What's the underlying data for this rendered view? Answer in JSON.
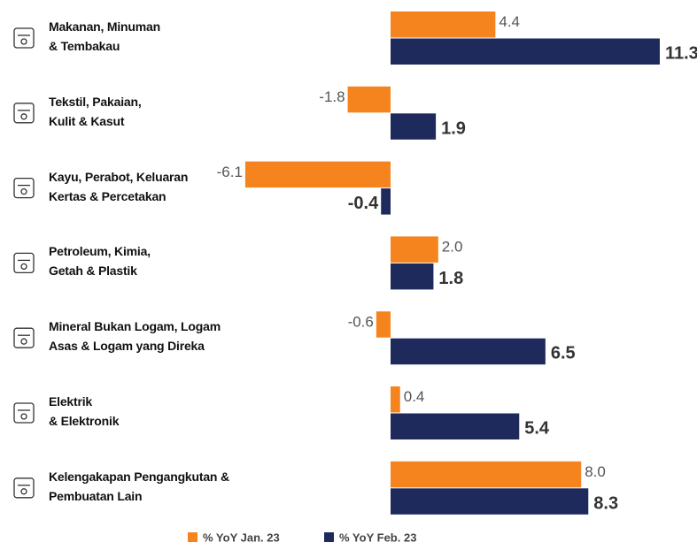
{
  "chart_data": {
    "type": "bar",
    "orientation": "horizontal",
    "categories": [
      "Makanan, Minuman\n& Tembakau",
      "Tekstil, Pakaian,\nKulit & Kasut",
      "Kayu, Perabot, Keluaran\nKertas & Percetakan",
      "Petroleum, Kimia,\nGetah & Plastik",
      "Mineral Bukan Logam, Logam\nAsas & Logam yang Direka",
      "Elektrik\n& Elektronik",
      "Kelengakapan Pengangkutan &\nPembuatan Lain"
    ],
    "series": [
      {
        "name": "% YoY Jan. 23",
        "color": "#f5841f",
        "values": [
          4.4,
          -1.8,
          -6.1,
          2.0,
          -0.6,
          0.4,
          8.0
        ],
        "value_labels": [
          "4.4",
          "-1.8",
          "-6.1",
          "2.0",
          "-0.6",
          "0.4",
          "8.0"
        ]
      },
      {
        "name": "% YoY Feb. 23",
        "color": "#1f2a5c",
        "values": [
          11.3,
          1.9,
          -0.4,
          1.8,
          6.5,
          5.4,
          8.3
        ],
        "value_labels": [
          "11.3",
          "1.9",
          "-0.4",
          "1.8",
          "6.5",
          "5.4",
          "8.3"
        ]
      }
    ],
    "legend": "bottom"
  }
}
